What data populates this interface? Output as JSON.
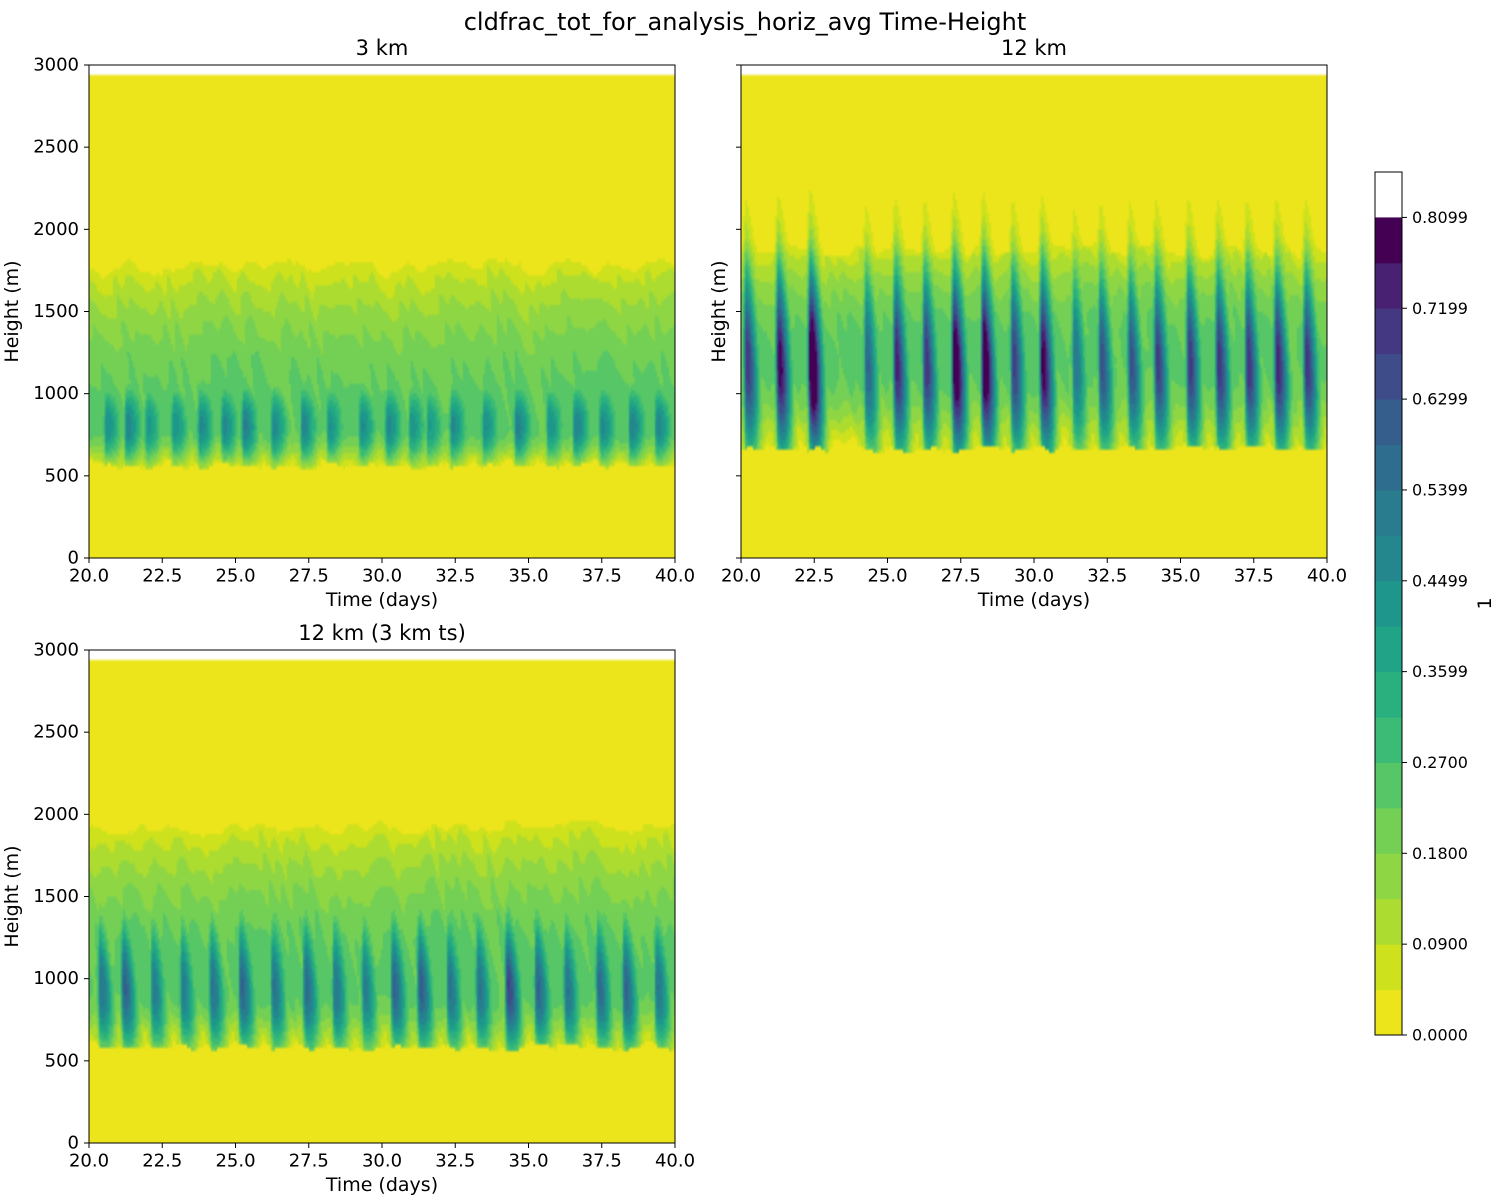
{
  "figure": {
    "title": "cldfrac_tot_for_analysis_horiz_avg Time-Height"
  },
  "colors": {
    "background": "#ffffff",
    "palette": [
      "#ede51b",
      "#cde11d",
      "#addc30",
      "#8fd644",
      "#74d055",
      "#56c667",
      "#3bbb75",
      "#2aaf7f",
      "#20a386",
      "#1f968b",
      "#24878e",
      "#297b8e",
      "#2e6d8e",
      "#355e8d",
      "#3e4c8a",
      "#453882",
      "#482173",
      "#440154"
    ]
  },
  "colorbar": {
    "label": "1",
    "tick_labels": [
      "0.0000",
      "0.0900",
      "0.1800",
      "0.2700",
      "0.3599",
      "0.4499",
      "0.5399",
      "0.6299",
      "0.7199",
      "0.8099"
    ],
    "levels": [
      0,
      0.045,
      0.09,
      0.135,
      0.18,
      0.225,
      0.27,
      0.315,
      0.36,
      0.405,
      0.45,
      0.495,
      0.54,
      0.585,
      0.63,
      0.675,
      0.72,
      0.765,
      0.81,
      0.855
    ]
  },
  "chart_data": [
    {
      "type": "heatmap",
      "title": "3 km",
      "xlabel": "Time (days)",
      "ylabel": "Height (m)",
      "xlim": [
        20,
        40
      ],
      "ylim": [
        0,
        3000
      ],
      "data_top": 2950,
      "x_ticks": [
        "20.0",
        "22.5",
        "25.0",
        "27.5",
        "30.0",
        "32.5",
        "35.0",
        "37.5",
        "40.0"
      ],
      "y_ticks": [
        "0",
        "500",
        "1000",
        "1500",
        "2000",
        "2500",
        "3000"
      ],
      "show_y_tick_labels": true,
      "cloud_base": 600,
      "cloud_core": 800,
      "cloud_top": 1850,
      "core_max": 0.38,
      "core_thickness": 250,
      "tilt": 0,
      "pulse_period": 0.55,
      "pulses": [
        {
          "t": 20.6,
          "amp": 0.35,
          "h": 1950
        },
        {
          "t": 21.3,
          "amp": 0.4,
          "h": 1900
        },
        {
          "t": 22.0,
          "amp": 0.33,
          "h": 1850
        },
        {
          "t": 22.9,
          "amp": 0.35,
          "h": 1800
        },
        {
          "t": 23.8,
          "amp": 0.38,
          "h": 2000
        },
        {
          "t": 24.6,
          "amp": 0.37,
          "h": 2000
        },
        {
          "t": 25.3,
          "amp": 0.4,
          "h": 1800
        },
        {
          "t": 26.3,
          "amp": 0.37,
          "h": 1900
        },
        {
          "t": 27.3,
          "amp": 0.38,
          "h": 1850
        },
        {
          "t": 28.2,
          "amp": 0.35,
          "h": 1850
        },
        {
          "t": 29.3,
          "amp": 0.37,
          "h": 1950
        },
        {
          "t": 30.2,
          "amp": 0.38,
          "h": 1850
        },
        {
          "t": 31.0,
          "amp": 0.35,
          "h": 1900
        },
        {
          "t": 31.6,
          "amp": 0.32,
          "h": 2150
        },
        {
          "t": 32.4,
          "amp": 0.38,
          "h": 1850
        },
        {
          "t": 33.5,
          "amp": 0.36,
          "h": 1850
        },
        {
          "t": 34.6,
          "amp": 0.4,
          "h": 1850
        },
        {
          "t": 35.7,
          "amp": 0.35,
          "h": 1750
        },
        {
          "t": 36.6,
          "amp": 0.4,
          "h": 1950
        },
        {
          "t": 37.5,
          "amp": 0.37,
          "h": 1900
        },
        {
          "t": 38.5,
          "amp": 0.4,
          "h": 1900
        },
        {
          "t": 39.4,
          "amp": 0.38,
          "h": 1950
        }
      ]
    },
    {
      "type": "heatmap",
      "title": "12 km",
      "xlabel": "Time (days)",
      "ylabel": "Height (m)",
      "xlim": [
        20,
        40
      ],
      "ylim": [
        0,
        3000
      ],
      "data_top": 2950,
      "x_ticks": [
        "20.0",
        "22.5",
        "25.0",
        "27.5",
        "30.0",
        "32.5",
        "35.0",
        "37.5",
        "40.0"
      ],
      "y_ticks": [
        "0",
        "500",
        "1000",
        "1500",
        "2000",
        "2500",
        "3000"
      ],
      "show_y_tick_labels": false,
      "cloud_base": 700,
      "cloud_core": 1200,
      "cloud_top": 1950,
      "core_max": 0.55,
      "core_thickness": 600,
      "tilt": 1,
      "pulse_period": 0.45,
      "pulses": [
        {
          "t": 20.2,
          "amp": 0.62,
          "h": 1900
        },
        {
          "t": 21.3,
          "amp": 0.72,
          "h": 2050
        },
        {
          "t": 22.4,
          "amp": 0.85,
          "h": 2150
        },
        {
          "t": 24.3,
          "amp": 0.5,
          "h": 1900
        },
        {
          "t": 25.3,
          "amp": 0.65,
          "h": 1950
        },
        {
          "t": 26.3,
          "amp": 0.62,
          "h": 2000
        },
        {
          "t": 27.3,
          "amp": 0.78,
          "h": 2050
        },
        {
          "t": 28.3,
          "amp": 0.78,
          "h": 2050
        },
        {
          "t": 29.3,
          "amp": 0.6,
          "h": 2050
        },
        {
          "t": 30.3,
          "amp": 0.72,
          "h": 2100
        },
        {
          "t": 31.4,
          "amp": 0.45,
          "h": 1950
        },
        {
          "t": 32.3,
          "amp": 0.55,
          "h": 1950
        },
        {
          "t": 33.3,
          "amp": 0.55,
          "h": 2000
        },
        {
          "t": 34.2,
          "amp": 0.6,
          "h": 2050
        },
        {
          "t": 35.3,
          "amp": 0.62,
          "h": 2050
        },
        {
          "t": 36.3,
          "amp": 0.62,
          "h": 2050
        },
        {
          "t": 37.3,
          "amp": 0.62,
          "h": 2050
        },
        {
          "t": 38.3,
          "amp": 0.65,
          "h": 2000
        },
        {
          "t": 39.3,
          "amp": 0.62,
          "h": 2100
        }
      ]
    },
    {
      "type": "heatmap",
      "title": "12 km (3 km ts)",
      "xlabel": "Time (days)",
      "ylabel": "Height (m)",
      "xlim": [
        20,
        40
      ],
      "ylim": [
        0,
        3000
      ],
      "data_top": 2950,
      "x_ticks": [
        "20.0",
        "22.5",
        "25.0",
        "27.5",
        "30.0",
        "32.5",
        "35.0",
        "37.5",
        "40.0"
      ],
      "y_ticks": [
        "0",
        "500",
        "1000",
        "1500",
        "2000",
        "2500",
        "3000"
      ],
      "show_y_tick_labels": true,
      "cloud_base": 620,
      "cloud_core": 950,
      "cloud_top": 2000,
      "core_max": 0.42,
      "core_thickness": 420,
      "tilt": 0.6,
      "pulse_period": 0.5,
      "pulses": [
        {
          "t": 20.4,
          "amp": 0.45,
          "h": 2000
        },
        {
          "t": 21.2,
          "amp": 0.5,
          "h": 2000
        },
        {
          "t": 22.2,
          "amp": 0.42,
          "h": 1900
        },
        {
          "t": 23.2,
          "amp": 0.42,
          "h": 2000
        },
        {
          "t": 24.2,
          "amp": 0.45,
          "h": 2100
        },
        {
          "t": 25.2,
          "amp": 0.5,
          "h": 2000
        },
        {
          "t": 26.3,
          "amp": 0.45,
          "h": 2050
        },
        {
          "t": 27.4,
          "amp": 0.48,
          "h": 2150
        },
        {
          "t": 28.4,
          "amp": 0.45,
          "h": 2100
        },
        {
          "t": 29.4,
          "amp": 0.42,
          "h": 2000
        },
        {
          "t": 30.4,
          "amp": 0.5,
          "h": 2050
        },
        {
          "t": 31.3,
          "amp": 0.52,
          "h": 2150
        },
        {
          "t": 32.3,
          "amp": 0.45,
          "h": 2050
        },
        {
          "t": 33.3,
          "amp": 0.45,
          "h": 2150
        },
        {
          "t": 34.3,
          "amp": 0.58,
          "h": 2400
        },
        {
          "t": 35.3,
          "amp": 0.5,
          "h": 2050
        },
        {
          "t": 36.3,
          "amp": 0.45,
          "h": 2050
        },
        {
          "t": 37.4,
          "amp": 0.48,
          "h": 2350
        },
        {
          "t": 38.3,
          "amp": 0.5,
          "h": 2200
        },
        {
          "t": 39.4,
          "amp": 0.45,
          "h": 2050
        }
      ]
    }
  ]
}
